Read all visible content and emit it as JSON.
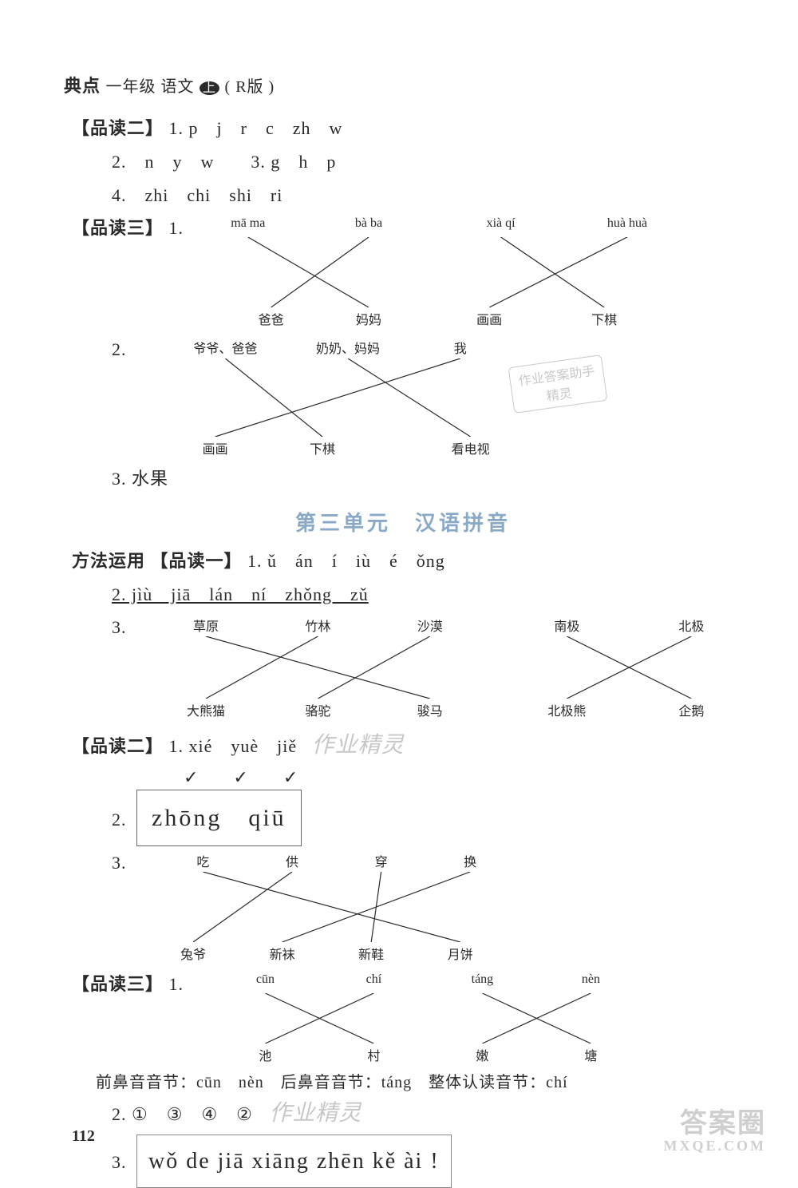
{
  "header": {
    "brand": "典点",
    "grade": "一年级 语文",
    "badge": "上",
    "edition": "( R版 )"
  },
  "pindu2": {
    "label": "【品读二】",
    "q1": "1. p　j　r　c　zh　w",
    "q2": "2.　n　y　w　　3. g　h　p",
    "q4": "4.　zhi　chi　shi　ri"
  },
  "pindu3_a": {
    "label": "【品读三】",
    "q1_prefix": "1.",
    "top": [
      "mā ma",
      "bà ba",
      "xià qí",
      "huà huà"
    ],
    "bottom": [
      "爸爸",
      "妈妈",
      "画画",
      "下棋"
    ],
    "top_x": [
      14,
      35,
      58,
      80
    ],
    "bot_x": [
      18,
      35,
      56,
      76
    ],
    "edges": [
      [
        0,
        1
      ],
      [
        1,
        0
      ],
      [
        2,
        3
      ],
      [
        3,
        2
      ]
    ]
  },
  "pindu3_b": {
    "q2_prefix": "2.",
    "top": [
      "爷爷、爸爸",
      "奶奶、妈妈",
      "我"
    ],
    "bottom": [
      "画画",
      "下棋",
      "看电视"
    ],
    "top_x": [
      16,
      40,
      62
    ],
    "bot_x": [
      14,
      35,
      64
    ],
    "edges": [
      [
        0,
        1
      ],
      [
        1,
        2
      ],
      [
        2,
        0
      ]
    ]
  },
  "pindu3_c": {
    "q3": "3. 水果"
  },
  "unit_title": "第三单元　汉语拼音",
  "fangfa": {
    "label": "方法运用",
    "sub": "【品读一】",
    "q1": "1. ǔ　án　í　iù　é　ǒng",
    "q2": "2. jìù　jiā　lán　ní　zhǒng　zǔ",
    "q3_prefix": "3.",
    "top": [
      "草原",
      "竹林",
      "沙漠",
      "南极",
      "北极"
    ],
    "bottom": [
      "大熊猫",
      "骆驼",
      "骏马",
      "北极熊",
      "企鹅"
    ],
    "top_x": [
      10,
      28,
      46,
      68,
      88
    ],
    "bot_x": [
      10,
      28,
      46,
      68,
      88
    ],
    "edges": [
      [
        0,
        2
      ],
      [
        1,
        0
      ],
      [
        2,
        1
      ],
      [
        3,
        4
      ],
      [
        4,
        3
      ]
    ]
  },
  "pindu2b": {
    "label": "【品读二】",
    "q1": "1. xié　yuè　jiě",
    "ticks": "✓　　✓　　✓",
    "q2_prefix": "2.",
    "q2_box": "zhōng　qiū",
    "q3_prefix": "3.",
    "top": [
      "吃",
      "供",
      "穿",
      "换"
    ],
    "bottom": [
      "兔爷",
      "新袜",
      "新鞋",
      "月饼"
    ],
    "top_x": [
      12,
      30,
      48,
      66
    ],
    "bot_x": [
      10,
      28,
      46,
      64
    ],
    "edges": [
      [
        0,
        3
      ],
      [
        1,
        0
      ],
      [
        2,
        2
      ],
      [
        3,
        1
      ]
    ]
  },
  "pindu3c": {
    "label": "【品读三】",
    "q1_prefix": "1.",
    "top": [
      "cūn",
      "chí",
      "táng",
      "nèn"
    ],
    "bottom": [
      "池",
      "村",
      "嫩",
      "塘"
    ],
    "top_x": [
      18,
      38,
      58,
      78
    ],
    "bot_x": [
      18,
      38,
      58,
      78
    ],
    "edges": [
      [
        0,
        1
      ],
      [
        1,
        0
      ],
      [
        2,
        3
      ],
      [
        3,
        2
      ]
    ],
    "note": "前鼻音音节：cūn　nèn　后鼻音音节：táng　整体认读音节：chí",
    "q2": "2. ①　③　④　②",
    "q3_prefix": "3.",
    "q3_box": "wǒ de jiā xiāng zhēn kě ài !"
  },
  "page_num": "112",
  "watermark": {
    "line1": "答案圈",
    "line2": "MXQE.COM"
  },
  "faded_label": "作业精灵",
  "stamp": {
    "l1": "作业答案助手",
    "l2": "精灵"
  },
  "colors": {
    "text": "#2a2a2a",
    "unit": "#8aa9c7",
    "wm": "#cfcfcf"
  }
}
